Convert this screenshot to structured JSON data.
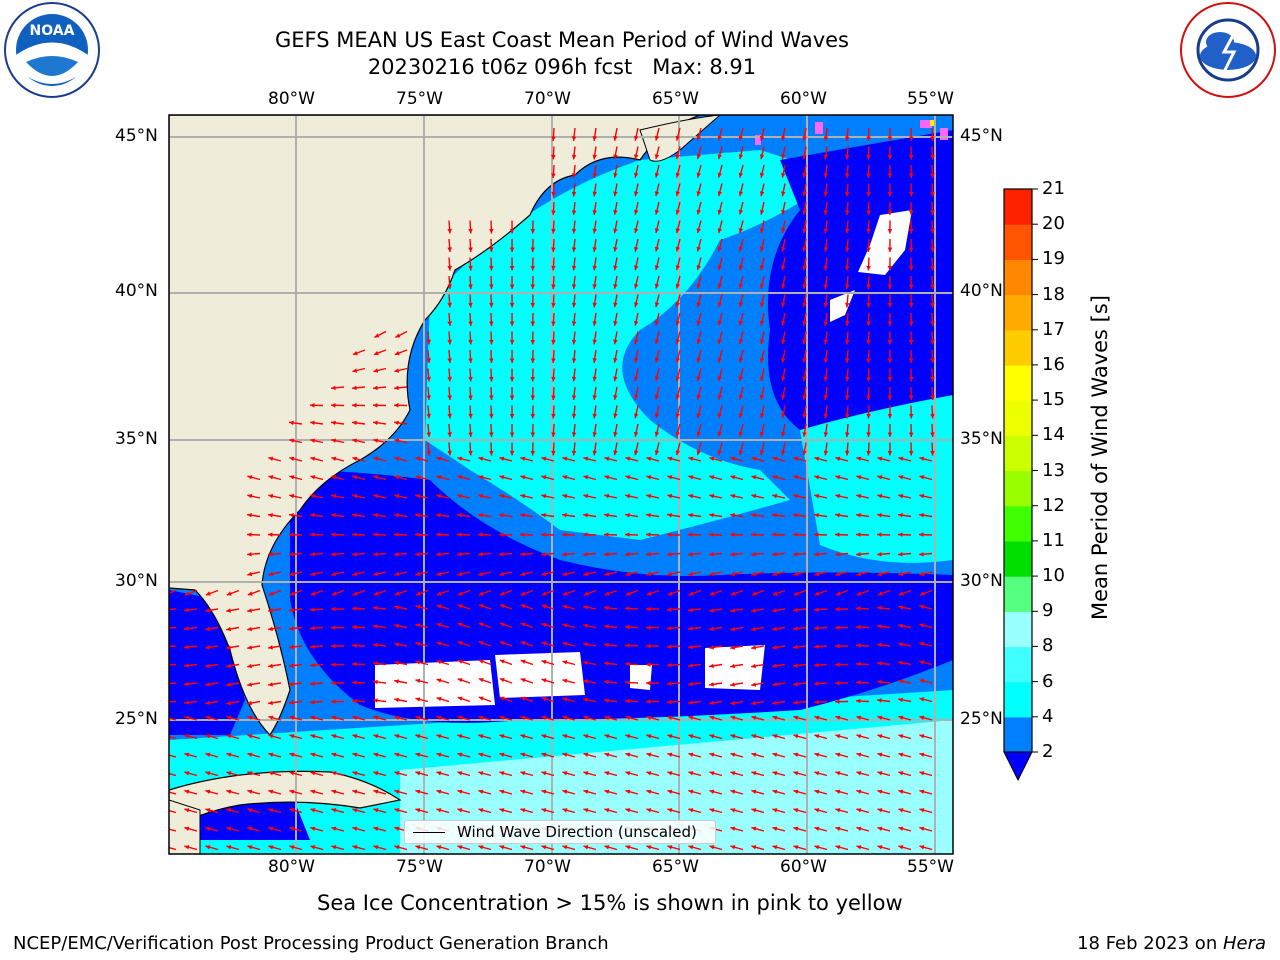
{
  "header": {
    "title_line1": "GEFS MEAN US East Coast Mean Period of Wind Waves",
    "title_line2": "20230216 t06z 096h fcst   Max: 8.91"
  },
  "logos": {
    "left": {
      "name": "noaa-logo",
      "text": "NOAA",
      "ring_text": "NATIONAL OCEANIC AND ATMOSPHERIC ADMINISTRATION · U.S. DEPARTMENT OF COMMERCE"
    },
    "right": {
      "name": "nws-logo",
      "ring_text": "NATIONAL WEATHER SERVICE"
    }
  },
  "map": {
    "lon_ticks": [
      "80°W",
      "75°W",
      "70°W",
      "65°W",
      "60°W",
      "55°W"
    ],
    "lat_ticks": [
      "45°N",
      "40°N",
      "35°N",
      "30°N",
      "25°N"
    ],
    "legend_label": "Wind Wave Direction (unscaled)",
    "colors": {
      "land": "#efedda",
      "frame": "#000000",
      "grid": "#b0b0b0",
      "arrow": "#ff0000"
    }
  },
  "colorbar": {
    "title": "Mean Period of Wind Waves [s]",
    "labels": [
      "2",
      "4",
      "6",
      "8",
      "9",
      "10",
      "11",
      "12",
      "13",
      "14",
      "15",
      "16",
      "17",
      "18",
      "19",
      "20",
      "21"
    ],
    "colors": [
      "#0000ff",
      "#0080ff",
      "#00ffff",
      "#40ffff",
      "#99ffff",
      "#55ff80",
      "#00e000",
      "#40ff00",
      "#99ff00",
      "#ccff00",
      "#eeff00",
      "#ffff00",
      "#ffcc00",
      "#ffaa00",
      "#ff8800",
      "#ff5500",
      "#ff2200",
      "#ff0000"
    ]
  },
  "caption": "Sea Ice Concentration > 15% is shown in pink to yellow",
  "footer": {
    "left": "NCEP/EMC/Verification Post Processing Product Generation Branch",
    "right_date": "18 Feb 2023 on ",
    "right_host": "Hera"
  }
}
